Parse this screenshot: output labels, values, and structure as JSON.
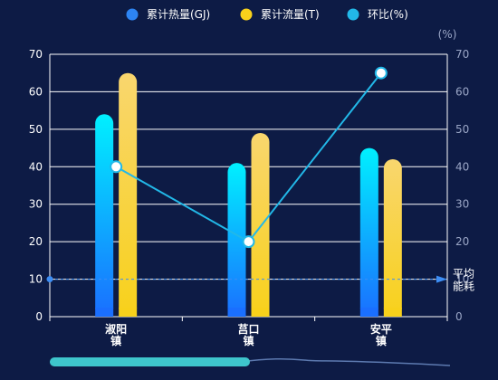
{
  "chart_data": {
    "type": "bar",
    "categories": [
      [
        "淑阳",
        "镇"
      ],
      [
        "莒口",
        "镇"
      ],
      [
        "安平",
        "镇"
      ]
    ],
    "series": [
      {
        "name": "累计热量(GJ)",
        "kind": "bar",
        "axis": "left",
        "values": [
          54,
          41,
          45
        ],
        "color_top": "#00f0ff",
        "color_bottom": "#1a6fff"
      },
      {
        "name": "累计流量(T)",
        "kind": "bar",
        "axis": "left",
        "values": [
          65,
          49,
          42
        ],
        "color_top": "#f9d66e",
        "color_bottom": "#f8d11b"
      },
      {
        "name": "环比(%)",
        "kind": "line",
        "axis": "right",
        "values": [
          40,
          20,
          65
        ],
        "color": "#22b8e8"
      }
    ],
    "left_axis": {
      "min": 0,
      "max": 70,
      "ticks": [
        0,
        10,
        20,
        30,
        40,
        50,
        60,
        70
      ]
    },
    "right_axis": {
      "unit": "(%)",
      "min": 0,
      "max": 70,
      "ticks": [
        0,
        10,
        20,
        30,
        40,
        50,
        60,
        70
      ]
    },
    "mark_line": {
      "value": 10,
      "label": [
        "平均",
        "能耗"
      ],
      "color": "#3d8ef5"
    },
    "legend_position": "top-center",
    "grid": true,
    "data_zoom": {
      "range_start_pct": 0,
      "range_end_pct": 50
    },
    "colors": {
      "background": "#0d1b45",
      "grid": "#ffffff",
      "legend_heat": "#2d84f3",
      "legend_flow": "#f8d11b",
      "legend_ratio": "#22b8e8",
      "zoom_handle": "#3ec5cb"
    }
  }
}
